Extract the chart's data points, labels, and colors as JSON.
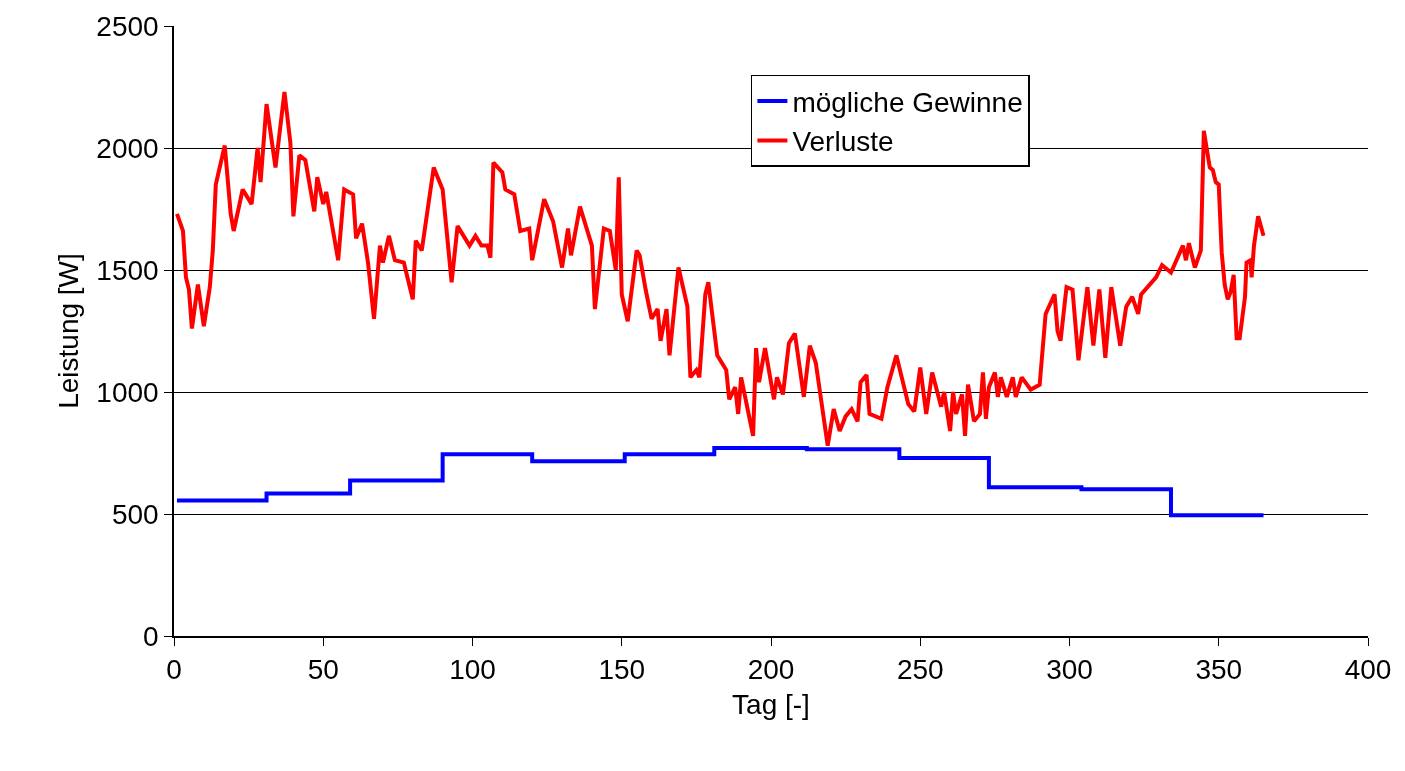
{
  "chart_data": {
    "type": "line",
    "xlabel": "Tag [-]",
    "ylabel": "Leistung [W]",
    "xlim": [
      0,
      400
    ],
    "xticks": [
      0,
      50,
      100,
      150,
      200,
      250,
      300,
      350,
      400
    ],
    "ylim": [
      0,
      2500
    ],
    "yticks": [
      0,
      500,
      1000,
      1500,
      2000,
      2500
    ],
    "grid": "y",
    "legend": "top",
    "marker": "none",
    "line_style": "solid",
    "series": [
      {
        "name": "mögliche Gewinne",
        "type": "step",
        "color": "#0000ff",
        "x": [
          1,
          31,
          59,
          90,
          120,
          151,
          181,
          212,
          243,
          273,
          304,
          334,
          365
        ],
        "values": [
          555,
          584,
          637,
          745,
          716,
          745,
          771,
          765,
          730,
          610,
          601,
          495,
          495
        ]
      },
      {
        "name": "Verluste",
        "color": "#ff0000",
        "x": [
          1,
          3,
          4,
          5,
          6,
          8,
          10,
          12,
          13,
          14,
          17,
          19,
          20,
          23,
          26,
          28,
          29,
          31,
          34,
          37,
          39,
          40,
          42,
          44,
          47,
          48,
          50,
          51,
          55,
          57,
          60,
          61,
          63,
          65,
          67,
          69,
          70,
          72,
          74,
          77,
          80,
          81,
          83,
          87,
          90,
          93,
          95,
          97,
          99,
          101,
          103,
          105,
          106,
          107,
          110,
          111,
          114,
          116,
          119,
          120,
          124,
          127,
          130,
          132,
          133,
          136,
          140,
          141,
          144,
          146,
          148,
          149,
          150,
          152,
          155,
          156,
          158,
          160,
          162,
          163,
          165,
          166,
          169,
          172,
          173,
          175,
          176,
          178,
          179,
          182,
          185,
          186,
          188,
          189,
          190,
          194,
          195,
          196,
          198,
          201,
          202,
          204,
          206,
          208,
          211,
          213,
          215,
          217,
          219,
          221,
          223,
          225,
          227,
          229,
          230,
          232,
          233,
          237,
          239,
          242,
          246,
          248,
          250,
          252,
          254,
          257,
          258,
          260,
          261,
          262,
          264,
          265,
          266,
          268,
          270,
          271,
          272,
          273,
          275,
          276,
          277,
          279,
          281,
          282,
          284,
          287,
          290,
          292,
          295,
          296,
          297,
          299,
          301,
          303,
          306,
          308,
          310,
          312,
          314,
          317,
          319,
          321,
          323,
          324,
          329,
          331,
          334,
          338,
          339,
          340,
          342,
          344,
          345,
          347,
          348,
          349,
          350,
          351,
          352,
          353,
          354,
          355,
          356,
          357,
          358.8,
          359.3,
          360.7,
          361,
          361.8,
          363.2,
          365
        ],
        "values": [
          1730,
          1660,
          1470,
          1420,
          1260,
          1440,
          1270,
          1430,
          1580,
          1850,
          2010,
          1730,
          1660,
          1830,
          1770,
          2000,
          1860,
          2180,
          1920,
          2230,
          2020,
          1720,
          1970,
          1950,
          1740,
          1880,
          1770,
          1820,
          1540,
          1830,
          1810,
          1630,
          1690,
          1530,
          1300,
          1600,
          1530,
          1640,
          1540,
          1530,
          1380,
          1620,
          1580,
          1920,
          1830,
          1450,
          1680,
          1640,
          1600,
          1640,
          1600,
          1600,
          1550,
          1940,
          1900,
          1830,
          1810,
          1660,
          1670,
          1540,
          1790,
          1700,
          1510,
          1670,
          1560,
          1760,
          1600,
          1340,
          1670,
          1660,
          1500,
          1880,
          1400,
          1290,
          1580,
          1560,
          1420,
          1300,
          1340,
          1210,
          1340,
          1150,
          1510,
          1350,
          1060,
          1090,
          1060,
          1400,
          1450,
          1150,
          1090,
          970,
          1020,
          910,
          1060,
          820,
          1180,
          1040,
          1180,
          970,
          1060,
          990,
          1200,
          1240,
          980,
          1190,
          1120,
          950,
          780,
          930,
          840,
          900,
          930,
          880,
          1040,
          1070,
          910,
          890,
          1020,
          1150,
          950,
          920,
          1100,
          910,
          1080,
          940,
          1000,
          840,
          1000,
          910,
          990,
          820,
          1030,
          880,
          910,
          1080,
          890,
          1020,
          1080,
          980,
          1060,
          980,
          1060,
          980,
          1060,
          1010,
          1030,
          1320,
          1400,
          1250,
          1210,
          1430,
          1420,
          1130,
          1430,
          1190,
          1420,
          1140,
          1430,
          1190,
          1350,
          1390,
          1320,
          1400,
          1470,
          1520,
          1490,
          1600,
          1540,
          1610,
          1510,
          1580,
          2070,
          1920,
          1910,
          1860,
          1850,
          1570,
          1440,
          1380,
          1410,
          1480,
          1220,
          1220,
          1390,
          1530,
          1540,
          1470,
          1600,
          1720,
          1640
        ]
      }
    ]
  }
}
